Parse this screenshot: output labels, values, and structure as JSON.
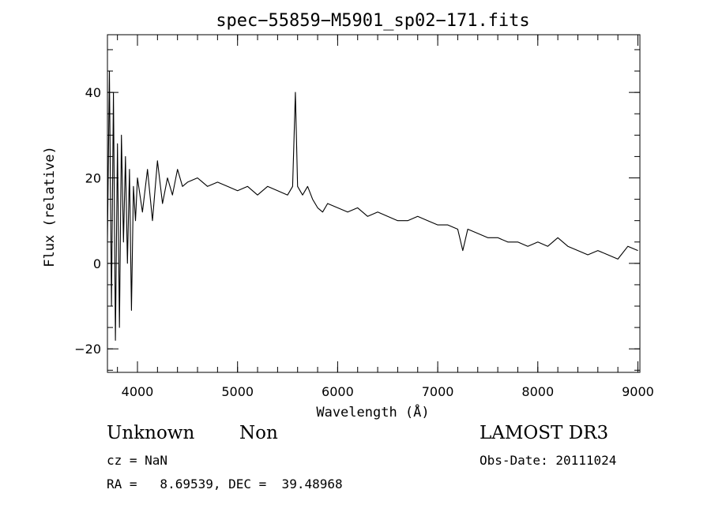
{
  "chart_data": {
    "type": "line",
    "title": "spec−55859−M5901_sp02−171.fits",
    "xlabel": "Wavelength (Å)",
    "ylabel": "Flux (relative)",
    "xlim": [
      3700,
      9020
    ],
    "ylim": [
      -25.5,
      53.5
    ],
    "x_ticks": [
      4000,
      5000,
      6000,
      7000,
      8000,
      9000
    ],
    "x_tick_labels": [
      "4000",
      "5000",
      "6000",
      "7000",
      "8000",
      "9000"
    ],
    "y_ticks": [
      -20,
      0,
      20,
      40
    ],
    "y_tick_labels": [
      "−20",
      "0",
      "20",
      "40"
    ],
    "x_minor_step": 200,
    "y_minor_step": 5,
    "grid": false,
    "line_color": "#000000",
    "series": [
      {
        "x": [
          3700,
          3720,
          3740,
          3760,
          3780,
          3800,
          3820,
          3840,
          3860,
          3880,
          3900,
          3920,
          3940,
          3960,
          3980,
          4000,
          4050,
          4100,
          4150,
          4200,
          4250,
          4300,
          4350,
          4400,
          4450,
          4500,
          4600,
          4700,
          4800,
          4900,
          5000,
          5100,
          5200,
          5300,
          5400,
          5500,
          5550,
          5578,
          5600,
          5650,
          5700,
          5750,
          5800,
          5850,
          5900,
          6000,
          6100,
          6200,
          6300,
          6400,
          6500,
          6600,
          6700,
          6800,
          6900,
          7000,
          7100,
          7200,
          7250,
          7300,
          7400,
          7500,
          7600,
          7700,
          7800,
          7900,
          8000,
          8100,
          8200,
          8300,
          8400,
          8500,
          8600,
          8700,
          8800,
          8900,
          9000
        ],
        "y": [
          5,
          45,
          -10,
          40,
          -18,
          28,
          -15,
          30,
          5,
          25,
          0,
          22,
          -11,
          18,
          10,
          20,
          12,
          22,
          10,
          24,
          14,
          20,
          16,
          22,
          18,
          19,
          20,
          18,
          19,
          18,
          17,
          18,
          16,
          18,
          17,
          16,
          18,
          40,
          18,
          16,
          18,
          15,
          13,
          12,
          14,
          13,
          12,
          13,
          11,
          12,
          11,
          10,
          10,
          11,
          10,
          9,
          9,
          8,
          3,
          8,
          7,
          6,
          6,
          5,
          5,
          4,
          5,
          4,
          6,
          4,
          3,
          2,
          3,
          2,
          1,
          4,
          3
        ]
      }
    ]
  },
  "labels": {
    "object_class": "Unknown",
    "subclass": "Non",
    "survey": "LAMOST DR3",
    "redshift": "cz = NaN",
    "obs_date": "Obs-Date: 20111024",
    "coords": "RA =   8.69539, DEC =  39.48968"
  }
}
